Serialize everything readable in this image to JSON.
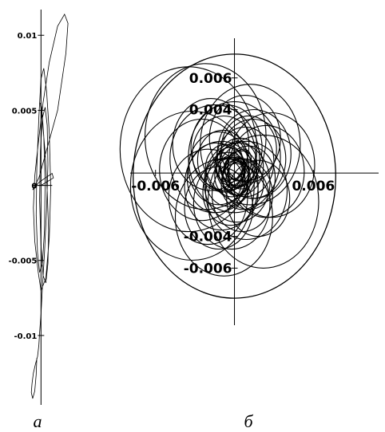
{
  "chart_data": [
    {
      "type": "line",
      "panel_caption": "а",
      "axes": {
        "y_ticks": [
          {
            "value": 0.01,
            "label": "0.01"
          },
          {
            "value": 0.005,
            "label": "0.005"
          },
          {
            "value": 0,
            "label": "0"
          },
          {
            "value": -0.005,
            "label": "-0.005"
          },
          {
            "value": -0.01,
            "label": "-0.01"
          }
        ],
        "xlim": [
          -0.002,
          0.004
        ],
        "ylim": [
          -0.0142,
          0.0115
        ]
      },
      "series": [
        {
          "x": [
            0.0,
            0.0018,
            0.0016,
            -0.0003,
            -0.0012,
            -0.0003,
            0.0024,
            0.0036,
            0.0039,
            0.0034,
            0.0024,
            0.0012,
            0.0003,
            -0.0004,
            -0.0009,
            -0.0011,
            -0.0009,
            -0.0004,
            0.0,
            0.0007,
            0.0012,
            0.0014,
            0.0012,
            0.0008,
            0.0004,
            0.0,
            -0.0003,
            -0.0006,
            -0.0007,
            -0.0005,
            -0.0002,
            0.0002,
            0.0005,
            0.0006,
            0.0004,
            0.0001,
            -0.0001,
            0.0002,
            0.0006,
            0.0009,
            0.0011,
            0.001,
            0.0007,
            0.0003,
            0.0,
            -0.0002,
            -0.0001,
            0.0002,
            0.0006,
            0.0009,
            0.001,
            0.0008,
            0.0005,
            0.0002,
            0.0,
            -0.0002,
            -0.0003,
            -0.0004,
            -0.0005,
            -0.0008,
            -0.0011,
            -0.0013,
            -0.0014,
            -0.0012,
            -0.0009,
            -0.0007,
            -0.0006
          ],
          "y": [
            0.0,
            0.0005,
            0.0008,
            0.0002,
            -0.0003,
            0.0005,
            0.005,
            0.0088,
            0.0108,
            0.0114,
            0.0106,
            0.0082,
            0.0055,
            0.0028,
            0.0006,
            -0.0015,
            -0.0037,
            -0.0058,
            -0.007,
            -0.0062,
            -0.0035,
            -0.0002,
            0.0035,
            0.0063,
            0.0078,
            0.0071,
            0.0046,
            0.0012,
            -0.002,
            -0.0045,
            -0.0058,
            -0.0052,
            -0.003,
            0.0002,
            0.0033,
            0.0052,
            0.0055,
            0.0043,
            0.0022,
            -0.0004,
            -0.003,
            -0.0052,
            -0.0065,
            -0.006,
            -0.004,
            -0.001,
            0.0022,
            0.0045,
            0.0052,
            0.004,
            0.0014,
            -0.0016,
            -0.0045,
            -0.0068,
            -0.0086,
            -0.0098,
            -0.0106,
            -0.011,
            -0.0114,
            -0.0119,
            -0.0125,
            -0.0132,
            -0.0138,
            -0.0142,
            -0.0137,
            -0.0126,
            -0.0115
          ]
        }
      ]
    },
    {
      "type": "line",
      "panel_caption": "б",
      "axes": {
        "x_ticks": [
          {
            "value": -0.006,
            "label": "-0.006"
          },
          {
            "value": 0.006,
            "label": "0.006"
          }
        ],
        "y_ticks": [
          {
            "value": 0.006,
            "label": "0.006"
          },
          {
            "value": 0.004,
            "label": "0.004"
          },
          {
            "value": -0.004,
            "label": "-0.004"
          },
          {
            "value": -0.006,
            "label": "-0.006"
          }
        ],
        "xlim": [
          -0.0075,
          0.0095
        ],
        "ylim": [
          -0.0093,
          0.0081
        ]
      },
      "circles": [
        {
          "cx": 0.0,
          "cy": -0.0002,
          "r": 0.0077
        },
        {
          "cx": -0.0035,
          "cy": 0.0015,
          "r": 0.0052
        },
        {
          "cx": -0.0022,
          "cy": 0.0023,
          "r": 0.0046
        },
        {
          "cx": 0.0022,
          "cy": -0.0018,
          "r": 0.0042
        },
        {
          "cx": -0.0032,
          "cy": -0.0008,
          "r": 0.0047
        },
        {
          "cx": 0.0012,
          "cy": 0.0018,
          "r": 0.0038
        },
        {
          "cx": -0.0008,
          "cy": -0.0028,
          "r": 0.0037
        },
        {
          "cx": 0.0028,
          "cy": 0.0005,
          "r": 0.0033
        },
        {
          "cx": -0.0015,
          "cy": 0.0009,
          "r": 0.0034
        },
        {
          "cx": 0.0009,
          "cy": -0.0011,
          "r": 0.0031
        },
        {
          "cx": -0.002,
          "cy": -0.0015,
          "r": 0.003
        },
        {
          "cx": 0.0015,
          "cy": 0.0012,
          "r": 0.0028
        },
        {
          "cx": -0.0006,
          "cy": 0.0016,
          "r": 0.0027
        },
        {
          "cx": 0.0002,
          "cy": -0.0006,
          "r": 0.0025
        },
        {
          "cx": -0.0012,
          "cy": 0.0003,
          "r": 0.0023
        },
        {
          "cx": 0.0008,
          "cy": 0.0007,
          "r": 0.0022
        },
        {
          "cx": -0.0003,
          "cy": -0.0012,
          "r": 0.0021
        },
        {
          "cx": 0.0011,
          "cy": -0.0003,
          "r": 0.002
        },
        {
          "cx": -0.0009,
          "cy": 0.0008,
          "r": 0.0019
        },
        {
          "cx": 0.0004,
          "cy": 0.0004,
          "r": 0.0018
        },
        {
          "cx": -0.0005,
          "cy": -0.0004,
          "r": 0.0017
        },
        {
          "cx": 0.0006,
          "cy": -0.0007,
          "r": 0.0016
        },
        {
          "cx": -0.0007,
          "cy": 0.0003,
          "r": 0.0015
        },
        {
          "cx": 0.0003,
          "cy": 0.0006,
          "r": 0.0014
        },
        {
          "cx": -0.0002,
          "cy": -0.0002,
          "r": 0.0013
        },
        {
          "cx": 0.0005,
          "cy": 0.0002,
          "r": 0.0012
        },
        {
          "cx": -0.0004,
          "cy": 0.0005,
          "r": 0.0011
        },
        {
          "cx": 0.0001,
          "cy": -0.0004,
          "r": 0.001
        },
        {
          "cx": -0.0003,
          "cy": 0.0001,
          "r": 0.0009
        },
        {
          "cx": 0.0003,
          "cy": -0.0001,
          "r": 0.0008
        },
        {
          "cx": -0.0001,
          "cy": 0.0003,
          "r": 0.0007
        },
        {
          "cx": 0.0002,
          "cy": 0.0001,
          "r": 0.0006
        },
        {
          "cx": -0.0012,
          "cy": -0.0022,
          "r": 0.0026
        },
        {
          "cx": 0.0018,
          "cy": -0.0016,
          "r": 0.0024
        },
        {
          "cx": -0.0018,
          "cy": 0.0018,
          "r": 0.0029
        },
        {
          "cx": 0.0008,
          "cy": 0.0022,
          "r": 0.0027
        },
        {
          "cx": -0.0025,
          "cy": 0.0002,
          "r": 0.0032
        },
        {
          "cx": 0.0024,
          "cy": 0.0001,
          "r": 0.0029
        },
        {
          "cx": -0.0002,
          "cy": -0.0019,
          "r": 0.0029
        },
        {
          "cx": 0.0,
          "cy": 0.001,
          "r": 0.0035
        },
        {
          "cx": -0.001,
          "cy": -0.0008,
          "r": 0.0028
        },
        {
          "cx": 0.0014,
          "cy": 0.0009,
          "r": 0.0025
        },
        {
          "cx": -0.0008,
          "cy": 0.0012,
          "r": 0.0024
        },
        {
          "cx": 0.0006,
          "cy": -0.0014,
          "r": 0.0023
        },
        {
          "cx": -0.0014,
          "cy": -0.0003,
          "r": 0.0022
        },
        {
          "cx": 0.0011,
          "cy": 0.0015,
          "r": 0.0021
        }
      ],
      "ellipses": [
        {
          "cx": 0.0002,
          "cy": 0.0002,
          "rx": 0.0009,
          "ry": 0.0014,
          "rot": 25
        },
        {
          "cx": 0.0001,
          "cy": 0.0,
          "rx": 0.0006,
          "ry": 0.001,
          "rot": 25
        }
      ]
    }
  ]
}
